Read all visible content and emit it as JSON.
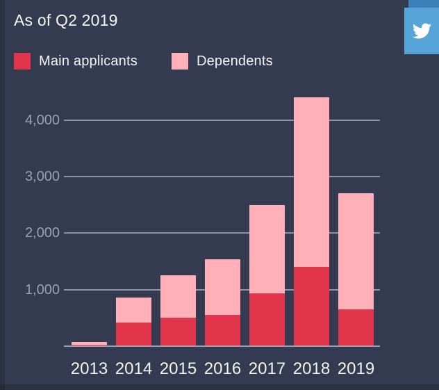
{
  "header": {
    "title": "As of Q2 2019"
  },
  "legend": [
    {
      "label": "Main applicants",
      "color": "#E0354B"
    },
    {
      "label": "Dependents",
      "color": "#FFB0B8"
    }
  ],
  "share": {
    "name": "twitter-share",
    "button_color": "#57A4D9",
    "strip_color": "#3C80BA",
    "icon_color": "#FFFFFF"
  },
  "colors": {
    "background": "#343B50",
    "grid": "rgba(171,179,196,0.75)",
    "y_label": "#9AA1B2",
    "x_label": "#F2F3F5"
  },
  "chart_data": {
    "type": "bar",
    "stacked": true,
    "title": "As of Q2 2019",
    "categories": [
      "2013",
      "2014",
      "2015",
      "2016",
      "2017",
      "2018",
      "2019"
    ],
    "series": [
      {
        "name": "Main applicants",
        "color": "#E0354B",
        "values": [
          20,
          420,
          500,
          550,
          940,
          1400,
          650
        ]
      },
      {
        "name": "Dependents",
        "color": "#FFB0B8",
        "values": [
          60,
          440,
          750,
          990,
          1560,
          3000,
          2050
        ]
      }
    ],
    "totals": [
      80,
      860,
      1250,
      1540,
      2500,
      4400,
      2700
    ],
    "yticks": [
      1000,
      2000,
      3000,
      4000
    ],
    "ytick_labels": [
      "1,000",
      "2,000",
      "3,000",
      "4,000"
    ],
    "ylim": [
      0,
      4403
    ],
    "xlabel": "",
    "ylabel": "",
    "grid": true,
    "legend_position": "top-left"
  }
}
